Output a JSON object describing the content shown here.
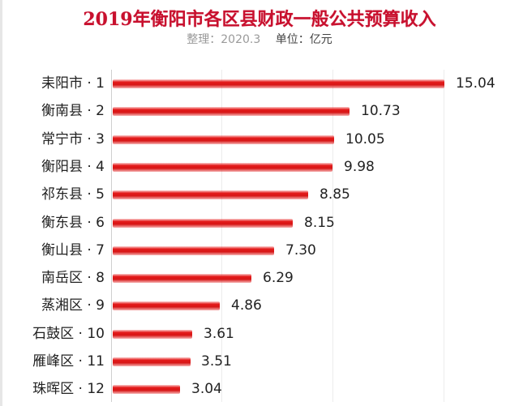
{
  "header": {
    "title": "2019年衡阳市各区县财政一般公共预算收入",
    "subtitle_compiled": "整理：2020.3",
    "subtitle_unit": "单位：亿元"
  },
  "colors": {
    "title": "#c8102e",
    "bar": "#e41b1b",
    "gridline": "#ececec"
  },
  "chart_data": {
    "type": "bar",
    "orientation": "horizontal",
    "title": "2019年衡阳市各区县财政一般公共预算收入",
    "subtitle": "整理：2020.3  单位：亿元",
    "xlabel": "",
    "ylabel": "",
    "unit": "亿元",
    "xlim": [
      0,
      15.04
    ],
    "grid": true,
    "gridlines_x": [
      0,
      5,
      10,
      15
    ],
    "legend": null,
    "data_labels": true,
    "categories": [
      "耒阳市 · 1",
      "衡南县 · 2",
      "常宁市 · 3",
      "衡阳县 · 4",
      "祁东县 · 5",
      "衡东县 · 6",
      "衡山县 · 7",
      "南岳区 · 8",
      "蒸湘区 · 9",
      "石鼓区 · 10",
      "雁峰区 · 11",
      "珠晖区 · 12"
    ],
    "values": [
      15.04,
      10.73,
      10.05,
      9.98,
      8.85,
      8.15,
      7.3,
      6.29,
      4.86,
      3.61,
      3.51,
      3.04
    ],
    "value_labels": [
      "15.04",
      "10.73",
      "10.05",
      "9.98",
      "8.85",
      "8.15",
      "7.30",
      "6.29",
      "4.86",
      "3.61",
      "3.51",
      "3.04"
    ]
  }
}
